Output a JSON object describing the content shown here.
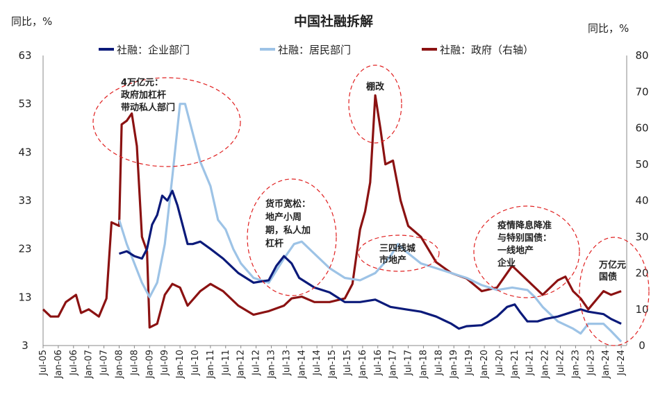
{
  "chart_data": {
    "type": "line",
    "title": "中国社融拆解",
    "ylabel_left": "同比，%",
    "ylabel_right": "同比，%",
    "ylim_left": [
      3,
      63
    ],
    "ylim_right": [
      0,
      80
    ],
    "yticks_left": [
      "63",
      "53",
      "43",
      "33",
      "23",
      "13",
      "3"
    ],
    "yticks_right": [
      "80",
      "70",
      "60",
      "50",
      "40",
      "30",
      "20",
      "10",
      "0"
    ],
    "xticks": [
      "Jul-05",
      "Jan-06",
      "Jul-06",
      "Jan-07",
      "Jul-07",
      "Jan-08",
      "Jul-08",
      "Jan-09",
      "Jul-09",
      "Jan-10",
      "Jul-10",
      "Jan-11",
      "Jul-11",
      "Jan-12",
      "Jul-12",
      "Jan-13",
      "Jul-13",
      "Jan-14",
      "Jul-14",
      "Jan-15",
      "Jul-15",
      "Jan-16",
      "Jul-16",
      "Jan-17",
      "Jul-17",
      "Jan-18",
      "Jul-18",
      "Jan-19",
      "Jul-19",
      "Jan-20",
      "Jul-20",
      "Jan-21",
      "Jul-21",
      "Jan-22",
      "Jul-22",
      "Jan-23",
      "Jul-23",
      "Jan-24",
      "Jul-24"
    ],
    "series": [
      {
        "name": "社融：企业部门",
        "axis": "left",
        "color": "#0b1a7a",
        "points": [
          [
            "2008-01",
            22
          ],
          [
            "2008-04",
            22.5
          ],
          [
            "2008-07",
            21.5
          ],
          [
            "2008-10",
            21
          ],
          [
            "2008-12",
            23
          ],
          [
            "2009-02",
            28
          ],
          [
            "2009-04",
            30
          ],
          [
            "2009-06",
            34
          ],
          [
            "2009-08",
            33
          ],
          [
            "2009-10",
            35
          ],
          [
            "2009-12",
            32
          ],
          [
            "2010-02",
            28
          ],
          [
            "2010-04",
            24
          ],
          [
            "2010-06",
            24
          ],
          [
            "2010-09",
            24.5
          ],
          [
            "2011-01",
            23
          ],
          [
            "2011-06",
            21
          ],
          [
            "2011-12",
            18
          ],
          [
            "2012-06",
            16
          ],
          [
            "2012-12",
            16.5
          ],
          [
            "2013-03",
            19.5
          ],
          [
            "2013-06",
            21.5
          ],
          [
            "2013-09",
            20
          ],
          [
            "2013-12",
            17
          ],
          [
            "2014-06",
            15
          ],
          [
            "2014-12",
            14
          ],
          [
            "2015-06",
            12
          ],
          [
            "2015-12",
            12
          ],
          [
            "2016-06",
            12.5
          ],
          [
            "2016-12",
            11
          ],
          [
            "2017-06",
            10.5
          ],
          [
            "2017-12",
            10
          ],
          [
            "2018-06",
            9
          ],
          [
            "2018-12",
            7.5
          ],
          [
            "2019-03",
            6.5
          ],
          [
            "2019-06",
            7
          ],
          [
            "2019-12",
            7.2
          ],
          [
            "2020-03",
            8
          ],
          [
            "2020-06",
            9
          ],
          [
            "2020-10",
            11
          ],
          [
            "2021-01",
            11.5
          ],
          [
            "2021-03",
            10
          ],
          [
            "2021-06",
            8
          ],
          [
            "2021-10",
            8
          ],
          [
            "2022-01",
            8.5
          ],
          [
            "2022-06",
            9
          ],
          [
            "2022-12",
            10
          ],
          [
            "2023-03",
            10.5
          ],
          [
            "2023-06",
            10
          ],
          [
            "2023-12",
            9.5
          ],
          [
            "2024-03",
            8.5
          ],
          [
            "2024-07",
            7.5
          ]
        ]
      },
      {
        "name": "社融：居民部门",
        "axis": "left",
        "color": "#9dc3e6",
        "points": [
          [
            "2008-01",
            29
          ],
          [
            "2008-04",
            24
          ],
          [
            "2008-07",
            20
          ],
          [
            "2008-10",
            16
          ],
          [
            "2009-01",
            13
          ],
          [
            "2009-04",
            16
          ],
          [
            "2009-07",
            24
          ],
          [
            "2009-10",
            38
          ],
          [
            "2010-01",
            53
          ],
          [
            "2010-03",
            53
          ],
          [
            "2010-06",
            47
          ],
          [
            "2010-09",
            41
          ],
          [
            "2011-01",
            36
          ],
          [
            "2011-04",
            29
          ],
          [
            "2011-07",
            27
          ],
          [
            "2011-10",
            23
          ],
          [
            "2012-01",
            20
          ],
          [
            "2012-06",
            17
          ],
          [
            "2012-12",
            16
          ],
          [
            "2013-06",
            21
          ],
          [
            "2013-10",
            24
          ],
          [
            "2014-01",
            24.5
          ],
          [
            "2014-06",
            22
          ],
          [
            "2014-12",
            19
          ],
          [
            "2015-06",
            17
          ],
          [
            "2015-12",
            16.5
          ],
          [
            "2016-06",
            18
          ],
          [
            "2016-12",
            21.5
          ],
          [
            "2017-03",
            24
          ],
          [
            "2017-06",
            22.5
          ],
          [
            "2017-12",
            20
          ],
          [
            "2018-06",
            19
          ],
          [
            "2018-12",
            18
          ],
          [
            "2019-06",
            17
          ],
          [
            "2019-12",
            15.5
          ],
          [
            "2020-06",
            14.5
          ],
          [
            "2020-12",
            15
          ],
          [
            "2021-06",
            14.5
          ],
          [
            "2021-09",
            13
          ],
          [
            "2021-12",
            11
          ],
          [
            "2022-06",
            8
          ],
          [
            "2022-12",
            6.5
          ],
          [
            "2023-03",
            5.5
          ],
          [
            "2023-06",
            7.5
          ],
          [
            "2023-12",
            7.5
          ],
          [
            "2024-03",
            6
          ],
          [
            "2024-07",
            3.8
          ]
        ]
      },
      {
        "name": "社融：政府（右轴）",
        "axis": "right",
        "color": "#8b1212",
        "points": [
          [
            "2005-07",
            10
          ],
          [
            "2005-10",
            8
          ],
          [
            "2006-01",
            8
          ],
          [
            "2006-04",
            12
          ],
          [
            "2006-08",
            14
          ],
          [
            "2006-10",
            9
          ],
          [
            "2007-01",
            10
          ],
          [
            "2007-05",
            8
          ],
          [
            "2007-08",
            13
          ],
          [
            "2007-10",
            34
          ],
          [
            "2008-01",
            33
          ],
          [
            "2008-02",
            61
          ],
          [
            "2008-04",
            62
          ],
          [
            "2008-06",
            64
          ],
          [
            "2008-08",
            55
          ],
          [
            "2008-10",
            30
          ],
          [
            "2008-12",
            26
          ],
          [
            "2009-01",
            5
          ],
          [
            "2009-04",
            6
          ],
          [
            "2009-07",
            14
          ],
          [
            "2009-10",
            17
          ],
          [
            "2010-01",
            16
          ],
          [
            "2010-04",
            11
          ],
          [
            "2010-09",
            15
          ],
          [
            "2011-01",
            17
          ],
          [
            "2011-06",
            15
          ],
          [
            "2011-12",
            11
          ],
          [
            "2012-06",
            8.5
          ],
          [
            "2012-12",
            9.5
          ],
          [
            "2013-06",
            11
          ],
          [
            "2013-09",
            13
          ],
          [
            "2014-01",
            13.5
          ],
          [
            "2014-06",
            12
          ],
          [
            "2014-12",
            12
          ],
          [
            "2015-06",
            13
          ],
          [
            "2015-09",
            17
          ],
          [
            "2015-12",
            32
          ],
          [
            "2016-02",
            37
          ],
          [
            "2016-04",
            45
          ],
          [
            "2016-06",
            69
          ],
          [
            "2016-08",
            60
          ],
          [
            "2016-10",
            50
          ],
          [
            "2017-01",
            51
          ],
          [
            "2017-04",
            40
          ],
          [
            "2017-07",
            33
          ],
          [
            "2017-12",
            30
          ],
          [
            "2018-06",
            23
          ],
          [
            "2018-12",
            20
          ],
          [
            "2019-06",
            18.5
          ],
          [
            "2019-12",
            15
          ],
          [
            "2020-06",
            16
          ],
          [
            "2020-12",
            22
          ],
          [
            "2021-03",
            20
          ],
          [
            "2021-09",
            16
          ],
          [
            "2021-12",
            14
          ],
          [
            "2022-06",
            18
          ],
          [
            "2022-09",
            19
          ],
          [
            "2022-12",
            15
          ],
          [
            "2023-03",
            13
          ],
          [
            "2023-06",
            10
          ],
          [
            "2023-12",
            15
          ],
          [
            "2024-03",
            14
          ],
          [
            "2024-07",
            15
          ]
        ]
      }
    ],
    "annotations": [
      {
        "id": "ann1",
        "lines": [
          "4万亿元：",
          "政府加杠杆",
          "带动私人部门"
        ],
        "colors": [
          "#e02020",
          "#222",
          "#222"
        ]
      },
      {
        "id": "ann2",
        "lines": [
          "棚改"
        ],
        "colors": [
          "#e02020"
        ]
      },
      {
        "id": "ann3",
        "lines": [
          "货币宽松：",
          "地产小周",
          "期，私人加",
          "杠杆"
        ],
        "colors": [
          "#e02020",
          "#222",
          "#222",
          "#222"
        ]
      },
      {
        "id": "ann4",
        "lines": [
          "三四线城",
          "市地产"
        ],
        "colors": [
          "#222",
          "#222"
        ]
      },
      {
        "id": "ann5",
        "lines": [
          "疫情降息降准",
          "与特别国债：",
          "一线地产",
          "企业"
        ],
        "colors": [
          "#e02020",
          "#e02020",
          "#222",
          "#222"
        ]
      },
      {
        "id": "ann6",
        "lines": [
          "万亿元",
          "国债"
        ],
        "colors": [
          "#222",
          "#222"
        ]
      }
    ],
    "legend_placement": "top"
  }
}
